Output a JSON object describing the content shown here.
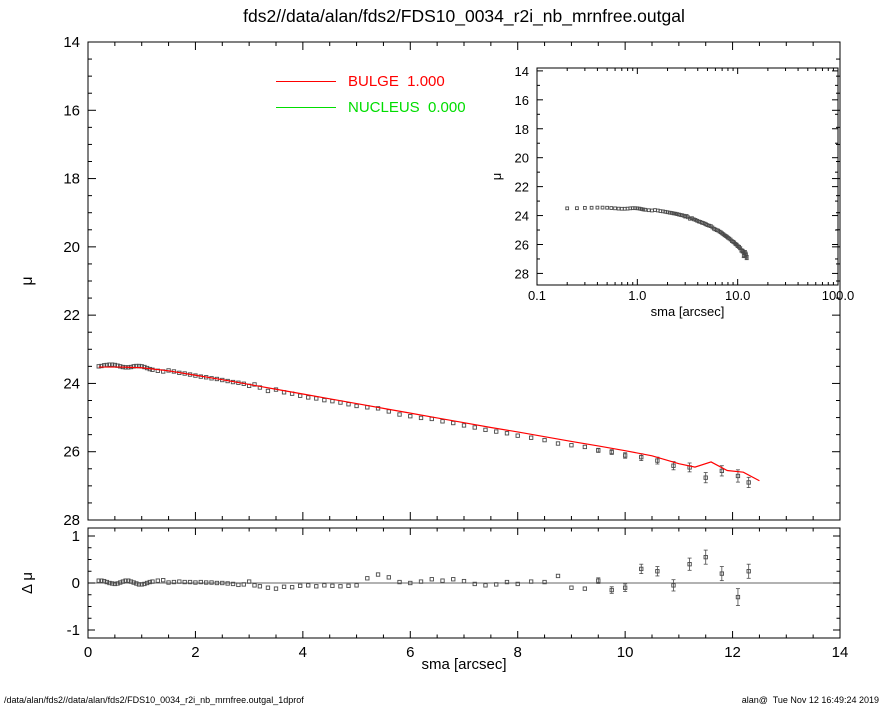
{
  "title": "fds2//data/alan/fds2/FDS10_0034_r2i_nb_mrnfree.outgal",
  "legend": {
    "bulge_label": "BULGE  1.000",
    "nucleus_label": "NUCLEUS  0.000",
    "bulge_color": "#ff0000",
    "nucleus_color": "#00dd00"
  },
  "footer": {
    "left": "/data/alan/fds2//data/alan/fds2/FDS10_0034_r2i_nb_mrnfree.outgal_1dprof",
    "right": "alan@  Tue Nov 12 16:49:24 2019"
  },
  "colors": {
    "data_marker": "#4a4a4a",
    "bulge_line": "#ff0000",
    "nucleus_line": "#00dd00",
    "axis": "#000000"
  },
  "chart_data": [
    {
      "id": "main",
      "type": "scatter",
      "title": "",
      "xlabel": "sma [arcsec]",
      "ylabel": "μ",
      "xlim": [
        0,
        14
      ],
      "ylim_top_bottom": [
        14,
        28
      ],
      "xticks": [
        0,
        2,
        4,
        6,
        8,
        10,
        12,
        14
      ],
      "xtick_labels": [],
      "yticks": [
        14,
        16,
        18,
        20,
        22,
        24,
        26,
        28
      ],
      "ytick_labels": [
        "14",
        "16",
        "18",
        "20",
        "22",
        "24",
        "26",
        "28"
      ],
      "grid": false,
      "series": [
        {
          "name": "profile-data",
          "kind": "scatter",
          "marker": "open-square",
          "color": "#4a4a4a",
          "x": [
            0.2,
            0.25,
            0.3,
            0.35,
            0.4,
            0.45,
            0.5,
            0.55,
            0.6,
            0.65,
            0.7,
            0.75,
            0.8,
            0.85,
            0.9,
            0.95,
            1.0,
            1.05,
            1.1,
            1.15,
            1.2,
            1.3,
            1.4,
            1.5,
            1.6,
            1.7,
            1.8,
            1.9,
            2.0,
            2.1,
            2.2,
            2.3,
            2.4,
            2.5,
            2.6,
            2.7,
            2.8,
            2.9,
            3.0,
            3.1,
            3.2,
            3.35,
            3.5,
            3.65,
            3.8,
            3.95,
            4.1,
            4.25,
            4.4,
            4.55,
            4.7,
            4.85,
            5.0,
            5.2,
            5.4,
            5.6,
            5.8,
            6.0,
            6.2,
            6.4,
            6.6,
            6.8,
            7.0,
            7.2,
            7.4,
            7.6,
            7.8,
            8.0,
            8.25,
            8.5,
            8.75,
            9.0,
            9.25,
            9.5,
            9.75,
            10.0,
            10.3,
            10.6,
            10.9,
            11.2,
            11.5,
            11.8,
            12.1,
            12.3
          ],
          "y": [
            23.5,
            23.49,
            23.47,
            23.46,
            23.45,
            23.45,
            23.46,
            23.48,
            23.5,
            23.52,
            23.53,
            23.53,
            23.52,
            23.5,
            23.49,
            23.49,
            23.5,
            23.52,
            23.55,
            23.58,
            23.6,
            23.63,
            23.65,
            23.62,
            23.65,
            23.69,
            23.71,
            23.74,
            23.77,
            23.8,
            23.82,
            23.85,
            23.87,
            23.9,
            23.93,
            23.96,
            23.98,
            24.01,
            24.07,
            24.03,
            24.12,
            24.22,
            24.18,
            24.26,
            24.3,
            24.36,
            24.41,
            24.44,
            24.49,
            24.52,
            24.56,
            24.61,
            24.66,
            24.7,
            24.73,
            24.82,
            24.91,
            24.96,
            25.01,
            25.04,
            25.11,
            25.16,
            25.23,
            25.29,
            25.36,
            25.41,
            25.46,
            25.53,
            25.59,
            25.66,
            25.76,
            25.81,
            25.86,
            25.96,
            26.01,
            26.11,
            26.16,
            26.26,
            26.41,
            26.46,
            26.76,
            26.56,
            26.71,
            26.9
          ],
          "yerr": [
            0,
            0,
            0,
            0,
            0,
            0,
            0,
            0,
            0,
            0,
            0,
            0,
            0,
            0,
            0,
            0,
            0,
            0,
            0,
            0,
            0,
            0,
            0,
            0,
            0,
            0,
            0,
            0,
            0,
            0,
            0,
            0,
            0,
            0,
            0,
            0,
            0,
            0,
            0,
            0,
            0,
            0,
            0,
            0,
            0,
            0,
            0,
            0,
            0,
            0,
            0,
            0,
            0,
            0,
            0,
            0,
            0,
            0,
            0,
            0,
            0,
            0,
            0,
            0,
            0,
            0,
            0,
            0,
            0,
            0,
            0,
            0,
            0,
            0.06,
            0.07,
            0.08,
            0.1,
            0.1,
            0.12,
            0.13,
            0.15,
            0.15,
            0.18,
            0.15
          ]
        },
        {
          "name": "bulge-model",
          "kind": "line",
          "label": "BULGE  1.000",
          "color": "#ff0000",
          "x": [
            0.2,
            0.6,
            1.0,
            1.5,
            2.0,
            2.5,
            3.0,
            3.5,
            4.0,
            4.5,
            5.0,
            5.5,
            6.0,
            6.5,
            7.0,
            7.5,
            8.0,
            8.5,
            9.0,
            9.5,
            10.0,
            10.5,
            11.0,
            11.3,
            11.6,
            11.9,
            12.2,
            12.5
          ],
          "y": [
            23.52,
            23.52,
            23.54,
            23.63,
            23.76,
            23.89,
            24.03,
            24.17,
            24.31,
            24.45,
            24.59,
            24.73,
            24.87,
            25.01,
            25.15,
            25.29,
            25.42,
            25.56,
            25.7,
            25.83,
            25.97,
            26.12,
            26.35,
            26.45,
            26.3,
            26.55,
            26.6,
            26.85
          ]
        }
      ]
    },
    {
      "id": "residual",
      "type": "scatter",
      "title": "",
      "xlabel": "sma [arcsec]",
      "ylabel": "Δ μ",
      "xlim": [
        0,
        14
      ],
      "ylim_top_bottom": [
        1.17,
        -1.17
      ],
      "xticks": [
        0,
        2,
        4,
        6,
        8,
        10,
        12,
        14
      ],
      "xtick_labels": [
        "0",
        "2",
        "4",
        "6",
        "8",
        "10",
        "12",
        "14"
      ],
      "yticks": [
        1,
        0,
        -1
      ],
      "ytick_labels": [
        "1",
        "0",
        "-1"
      ],
      "hline": 0,
      "grid": false,
      "series": [
        {
          "name": "residuals",
          "kind": "scatter",
          "marker": "open-square",
          "color": "#4a4a4a",
          "x": [
            0.2,
            0.25,
            0.3,
            0.35,
            0.4,
            0.45,
            0.5,
            0.55,
            0.6,
            0.65,
            0.7,
            0.75,
            0.8,
            0.85,
            0.9,
            0.95,
            1.0,
            1.05,
            1.1,
            1.15,
            1.2,
            1.3,
            1.4,
            1.5,
            1.6,
            1.7,
            1.8,
            1.9,
            2.0,
            2.1,
            2.2,
            2.3,
            2.4,
            2.5,
            2.6,
            2.7,
            2.8,
            2.9,
            3.0,
            3.1,
            3.2,
            3.35,
            3.5,
            3.65,
            3.8,
            3.95,
            4.1,
            4.25,
            4.4,
            4.55,
            4.7,
            4.85,
            5.0,
            5.2,
            5.4,
            5.6,
            5.8,
            6.0,
            6.2,
            6.4,
            6.6,
            6.8,
            7.0,
            7.2,
            7.4,
            7.6,
            7.8,
            8.0,
            8.25,
            8.5,
            8.75,
            9.0,
            9.25,
            9.5,
            9.75,
            10.0,
            10.3,
            10.6,
            10.9,
            11.2,
            11.5,
            11.8,
            12.1,
            12.3
          ],
          "y": [
            0.05,
            0.05,
            0.04,
            0.02,
            0.0,
            -0.01,
            -0.02,
            -0.01,
            0.01,
            0.03,
            0.05,
            0.05,
            0.03,
            0.01,
            -0.01,
            -0.03,
            -0.03,
            -0.02,
            0.0,
            0.02,
            0.03,
            0.05,
            0.06,
            0.01,
            0.02,
            0.03,
            0.02,
            0.02,
            0.01,
            0.02,
            0.01,
            0.01,
            0.0,
            0.0,
            -0.01,
            -0.02,
            -0.04,
            -0.03,
            0.03,
            -0.05,
            -0.07,
            -0.1,
            -0.12,
            -0.08,
            -0.09,
            -0.06,
            -0.05,
            -0.07,
            -0.05,
            -0.06,
            -0.07,
            -0.06,
            -0.05,
            0.1,
            0.18,
            0.12,
            0.02,
            0.0,
            0.03,
            0.08,
            0.05,
            0.08,
            0.04,
            -0.02,
            -0.05,
            -0.03,
            0.02,
            -0.02,
            0.03,
            0.02,
            0.15,
            -0.1,
            -0.12,
            0.05,
            -0.15,
            -0.1,
            0.3,
            0.25,
            -0.05,
            0.4,
            0.55,
            0.2,
            -0.3,
            0.25
          ],
          "yerr": [
            0,
            0,
            0,
            0,
            0,
            0,
            0,
            0,
            0,
            0,
            0,
            0,
            0,
            0,
            0,
            0,
            0,
            0,
            0,
            0,
            0,
            0,
            0,
            0,
            0,
            0,
            0,
            0,
            0,
            0,
            0,
            0,
            0,
            0,
            0,
            0,
            0,
            0,
            0,
            0,
            0,
            0,
            0,
            0,
            0,
            0,
            0,
            0,
            0,
            0,
            0,
            0,
            0,
            0,
            0,
            0,
            0,
            0,
            0,
            0,
            0,
            0,
            0,
            0,
            0,
            0,
            0,
            0,
            0,
            0,
            0,
            0,
            0,
            0.06,
            0.07,
            0.08,
            0.1,
            0.1,
            0.12,
            0.13,
            0.15,
            0.15,
            0.18,
            0.15
          ]
        }
      ]
    },
    {
      "id": "inset",
      "type": "scatter",
      "title": "",
      "xscale": "log",
      "xlabel": "sma [arcsec]",
      "ylabel": "μ",
      "xlim": [
        0.1,
        100
      ],
      "ylim_top_bottom": [
        13.8,
        28.8
      ],
      "xticks": [
        0.1,
        1,
        10,
        100
      ],
      "xtick_labels": [
        "0.1",
        "1.0",
        "10.0",
        "100.0"
      ],
      "yticks": [
        14,
        16,
        18,
        20,
        22,
        24,
        26,
        28
      ],
      "ytick_labels": [
        "14",
        "16",
        "18",
        "20",
        "22",
        "24",
        "26",
        "28"
      ],
      "grid": false,
      "series": [
        {
          "name": "profile-data",
          "kind": "scatter",
          "marker": "open-square",
          "color": "#4a4a4a",
          "data_ref": "chart_data.0.series.0"
        }
      ]
    }
  ]
}
